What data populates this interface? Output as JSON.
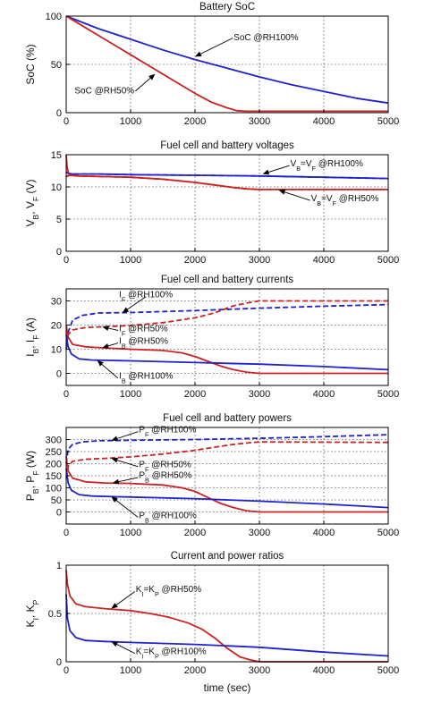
{
  "colors": {
    "red": "#cc2222",
    "blue": "#2222cc",
    "axis": "#000000",
    "grid": "#555555"
  },
  "chart_data": [
    {
      "type": "line",
      "title": "Battery SoC",
      "xlabel": "",
      "ylabel": "SoC (%)",
      "xlim": [
        0,
        5000
      ],
      "ylim": [
        0,
        100
      ],
      "xticks": [
        0,
        1000,
        2000,
        3000,
        4000,
        5000
      ],
      "yticks": [
        0,
        50,
        100
      ],
      "grid": true,
      "series": [
        {
          "color": "#2222cc",
          "dashed": false,
          "x": [
            0,
            500,
            1000,
            1500,
            2000,
            2500,
            3000,
            3500,
            4000,
            4500,
            5000
          ],
          "y": [
            100,
            87,
            76,
            65,
            55,
            46,
            37,
            29,
            22,
            15,
            10
          ]
        },
        {
          "color": "#cc2222",
          "dashed": false,
          "x": [
            0,
            250,
            500,
            750,
            1000,
            1250,
            1500,
            1750,
            2000,
            2250,
            2500,
            2650,
            2800,
            3000,
            5000
          ],
          "y": [
            100,
            90,
            80,
            70,
            60,
            50,
            40,
            30,
            20,
            11,
            5,
            2,
            1.5,
            1.5,
            1.5
          ]
        }
      ],
      "annotations": [
        {
          "text": "SoC @RH100%",
          "x": 2600,
          "y": 75,
          "target": [
            2000,
            58
          ]
        },
        {
          "text": "SoC @RH50%",
          "x": 130,
          "y": 20,
          "target": [
            1380,
            40
          ]
        }
      ]
    },
    {
      "type": "line",
      "title": "Fuel cell and battery voltages",
      "xlabel": "",
      "ylabel": "Vₒ, Vₓ (V)",
      "ylabel_main": "V",
      "ylabel_sub1": "B",
      "ylabel_mid": ", V",
      "ylabel_sub2": "F",
      "ylabel_unit": " (V)",
      "xlim": [
        0,
        5000
      ],
      "ylim": [
        0,
        15
      ],
      "xticks": [
        0,
        1000,
        2000,
        3000,
        4000,
        5000
      ],
      "yticks": [
        0,
        5,
        10,
        15
      ],
      "grid": true,
      "series": [
        {
          "color": "#2222cc",
          "dashed": false,
          "x": [
            0,
            30,
            100,
            500,
            1000,
            2000,
            3000,
            4000,
            5000
          ],
          "y": [
            12.3,
            12.1,
            12.0,
            12.0,
            11.9,
            11.8,
            11.7,
            11.5,
            11.3
          ]
        },
        {
          "color": "#2222cc",
          "dashed": true,
          "x": [
            0,
            30,
            100,
            500,
            1000,
            2000,
            3000,
            4000,
            5000
          ],
          "y": [
            12.3,
            12.1,
            12.0,
            12.0,
            11.9,
            11.8,
            11.7,
            11.5,
            11.3
          ]
        },
        {
          "color": "#cc2222",
          "dashed": false,
          "x": [
            0,
            50,
            200,
            1000,
            1500,
            2000,
            2300,
            2600,
            2800,
            3000,
            5000
          ],
          "y": [
            11.6,
            11.8,
            11.7,
            11.5,
            11.2,
            10.7,
            10.3,
            9.9,
            9.7,
            9.6,
            9.6
          ]
        },
        {
          "color": "#cc2222",
          "dashed": true,
          "x": [
            0,
            50,
            200,
            1000,
            1500,
            2000,
            2300,
            2600,
            2800,
            3000,
            5000
          ],
          "y": [
            11.6,
            11.8,
            11.7,
            11.5,
            11.2,
            10.7,
            10.3,
            9.9,
            9.7,
            9.6,
            9.6
          ]
        },
        {
          "color": "#cc2222",
          "dashed": false,
          "x": [
            0,
            15,
            40
          ],
          "y": [
            15,
            13,
            12
          ]
        }
      ],
      "annotations": [
        {
          "main": "V",
          "s1": "B",
          "mid": "=V",
          "s2": "F",
          "tail": " @RH100%",
          "x": 3480,
          "y": 13.2,
          "target": [
            3050,
            12.0
          ]
        },
        {
          "main": "V",
          "s1": "B",
          "mid": "=V",
          "s2": "F",
          "tail": " @RH50%",
          "x": 3800,
          "y": 7.8,
          "target": [
            3300,
            9.5
          ]
        }
      ]
    },
    {
      "type": "line",
      "title": "Fuel cell and battery currents",
      "xlabel": "",
      "ylabel_main": "I",
      "ylabel_sub1": "B",
      "ylabel_mid": ", I",
      "ylabel_sub2": "F",
      "ylabel_unit": " (A)",
      "xlim": [
        0,
        5000
      ],
      "ylim": [
        -5,
        35
      ],
      "xticks": [
        0,
        1000,
        2000,
        3000,
        4000,
        5000
      ],
      "yticks": [
        0,
        10,
        20,
        30
      ],
      "grid": true,
      "series": [
        {
          "color": "#2222cc",
          "dashed": true,
          "x": [
            0,
            30,
            100,
            250,
            500,
            1000,
            2000,
            3000,
            4000,
            5000
          ],
          "y": [
            10,
            17,
            22,
            24,
            25,
            25.2,
            26,
            27,
            27.8,
            28.5
          ]
        },
        {
          "color": "#cc2222",
          "dashed": true,
          "x": [
            0,
            30,
            100,
            300,
            600,
            1000,
            1500,
            2000,
            2300,
            2600,
            2900,
            3000,
            5000
          ],
          "y": [
            12,
            16,
            18,
            19,
            19.3,
            19.8,
            21,
            23,
            25,
            28,
            29.6,
            30,
            30
          ]
        },
        {
          "color": "#cc2222",
          "dashed": false,
          "x": [
            0,
            30,
            100,
            300,
            600,
            1000,
            1500,
            1800,
            2000,
            2200,
            2400,
            2600,
            2800,
            3000,
            5000
          ],
          "y": [
            20,
            15,
            12,
            11,
            10.5,
            10,
            9.5,
            8.5,
            7,
            5,
            3,
            1.5,
            0.5,
            0,
            0
          ]
        },
        {
          "color": "#2222cc",
          "dashed": false,
          "x": [
            0,
            30,
            80,
            200,
            400,
            800,
            1000,
            2000,
            3000,
            4000,
            5000
          ],
          "y": [
            16,
            11,
            8,
            6,
            5.5,
            5.3,
            5.2,
            4.5,
            3.8,
            2.8,
            1.5
          ]
        }
      ],
      "annotations": [
        {
          "main": "I",
          "s1": "F",
          "tail": " @RH100%",
          "x": 820,
          "y": 31.5,
          "target": [
            870,
            25.0
          ]
        },
        {
          "main": "I",
          "s1": "F",
          "tail": " @RH50%",
          "x": 820,
          "y": 17.5,
          "target": [
            560,
            19.3
          ]
        },
        {
          "main": "I",
          "s1": "B",
          "tail": " @RH50%",
          "x": 820,
          "y": 12.3,
          "target": [
            560,
            10.6
          ]
        },
        {
          "main": "I",
          "s1": "B",
          "tail": " @RH100%",
          "x": 820,
          "y": -2.3,
          "target": [
            480,
            5.4
          ]
        }
      ]
    },
    {
      "type": "line",
      "title": "Fuel cell and battery powers",
      "xlabel": "",
      "ylabel_main": "P",
      "ylabel_sub1": "B",
      "ylabel_mid": ", P",
      "ylabel_sub2": "F",
      "ylabel_unit": " (W)",
      "xlim": [
        0,
        5000
      ],
      "ylim": [
        -50,
        350
      ],
      "xticks": [
        0,
        1000,
        2000,
        3000,
        4000,
        5000
      ],
      "yticks": [
        0,
        50,
        100,
        150,
        200,
        250,
        300
      ],
      "grid": true,
      "series": [
        {
          "color": "#2222cc",
          "dashed": true,
          "x": [
            0,
            30,
            100,
            250,
            500,
            1000,
            2000,
            3000,
            4000,
            5000
          ],
          "y": [
            200,
            260,
            280,
            290,
            295,
            297,
            300,
            305,
            312,
            320
          ]
        },
        {
          "color": "#cc2222",
          "dashed": true,
          "x": [
            0,
            30,
            100,
            300,
            600,
            1000,
            1500,
            2000,
            2300,
            2600,
            2900,
            3000,
            5000
          ],
          "y": [
            140,
            190,
            210,
            218,
            222,
            228,
            240,
            255,
            268,
            280,
            288,
            290,
            288
          ]
        },
        {
          "color": "#cc2222",
          "dashed": false,
          "x": [
            0,
            30,
            100,
            300,
            600,
            1000,
            1500,
            1800,
            2000,
            2200,
            2400,
            2600,
            2800,
            3000,
            5000
          ],
          "y": [
            230,
            170,
            140,
            125,
            120,
            118,
            112,
            100,
            85,
            60,
            35,
            18,
            5,
            0,
            0
          ]
        },
        {
          "color": "#2222cc",
          "dashed": false,
          "x": [
            0,
            30,
            80,
            200,
            400,
            800,
            1000,
            2000,
            3000,
            4000,
            5000
          ],
          "y": [
            180,
            120,
            90,
            72,
            66,
            63,
            62,
            55,
            45,
            33,
            18
          ]
        }
      ],
      "annotations": [
        {
          "main": "P",
          "s1": "F",
          "tail": " @RH100%",
          "x": 1130,
          "y": 330,
          "target": [
            700,
            296
          ]
        },
        {
          "main": "P",
          "s1": "F",
          "tail": " @RH50%",
          "x": 1130,
          "y": 185,
          "target": [
            700,
            222
          ]
        },
        {
          "main": "P",
          "s1": "B",
          "tail": " @RH50%",
          "x": 1130,
          "y": 140,
          "target": [
            720,
            120
          ]
        },
        {
          "main": "P",
          "s1": "B",
          "tail": " @RH100%",
          "x": 1130,
          "y": -25,
          "target": [
            700,
            64
          ]
        }
      ]
    },
    {
      "type": "line",
      "title": "Current and power ratios",
      "xlabel": "time (sec)",
      "ylabel_main": "K",
      "ylabel_sub1": "I",
      "ylabel_mid": ", K",
      "ylabel_sub2": "P",
      "ylabel_unit": "",
      "xlim": [
        0,
        5000
      ],
      "ylim": [
        0,
        1
      ],
      "xticks": [
        0,
        1000,
        2000,
        3000,
        4000,
        5000
      ],
      "yticks": [
        0,
        0.5,
        1
      ],
      "grid": true,
      "series": [
        {
          "color": "#cc2222",
          "dashed": false,
          "x": [
            0,
            20,
            60,
            150,
            300,
            600,
            1000,
            1300,
            1600,
            1900,
            2100,
            2300,
            2500,
            2700,
            2850,
            3000,
            5000
          ],
          "y": [
            0.95,
            0.8,
            0.68,
            0.6,
            0.57,
            0.55,
            0.53,
            0.5,
            0.46,
            0.4,
            0.34,
            0.25,
            0.14,
            0.05,
            0.02,
            0,
            0
          ]
        },
        {
          "color": "#2222cc",
          "dashed": false,
          "x": [
            0,
            20,
            60,
            150,
            300,
            600,
            1000,
            2000,
            3000,
            4000,
            5000
          ],
          "y": [
            0.7,
            0.45,
            0.32,
            0.25,
            0.22,
            0.21,
            0.2,
            0.18,
            0.15,
            0.1,
            0.06
          ]
        }
      ],
      "annotations": [
        {
          "main": "K",
          "s1": "I",
          "mid": "=K",
          "s2": "P",
          "tail": " @RH50%",
          "x": 1080,
          "y": 0.72,
          "target": [
            700,
            0.55
          ]
        },
        {
          "main": "K",
          "s1": "I",
          "mid": "=K",
          "s2": "P",
          "tail": " @RH100%",
          "x": 1080,
          "y": 0.08,
          "target": [
            700,
            0.21
          ]
        }
      ]
    }
  ]
}
